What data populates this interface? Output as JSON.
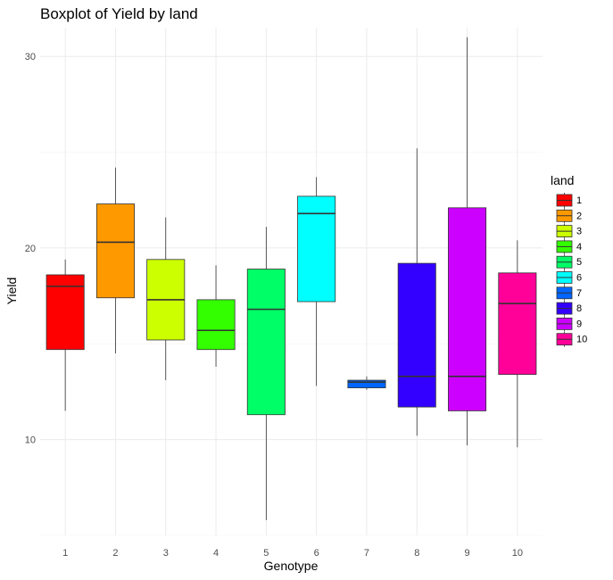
{
  "chart_data": {
    "type": "boxplot",
    "title": "Boxplot of Yield by land",
    "xlabel": "Genotype",
    "ylabel": "Yield",
    "ylim": [
      5,
      31.5
    ],
    "yticks": [
      10,
      20,
      30
    ],
    "grid": true,
    "legend": {
      "title": "land",
      "placement": "right"
    },
    "categories": [
      "1",
      "2",
      "3",
      "4",
      "5",
      "6",
      "7",
      "8",
      "9",
      "10"
    ],
    "boxes": [
      {
        "label": "1",
        "color": "#ff0000",
        "min": 11.5,
        "q1": 14.7,
        "median": 18.0,
        "q3": 18.6,
        "max": 19.4
      },
      {
        "label": "2",
        "color": "#ff9900",
        "min": 14.5,
        "q1": 17.4,
        "median": 20.3,
        "q3": 22.3,
        "max": 24.2
      },
      {
        "label": "3",
        "color": "#ccff00",
        "min": 13.1,
        "q1": 15.2,
        "median": 17.3,
        "q3": 19.4,
        "max": 21.6
      },
      {
        "label": "4",
        "color": "#33ff00",
        "min": 13.8,
        "q1": 14.7,
        "median": 15.7,
        "q3": 17.3,
        "max": 19.1
      },
      {
        "label": "5",
        "color": "#00ff66",
        "min": 5.8,
        "q1": 11.3,
        "median": 16.8,
        "q3": 18.9,
        "max": 21.1
      },
      {
        "label": "6",
        "color": "#00ffff",
        "min": 12.8,
        "q1": 17.2,
        "median": 21.8,
        "q3": 22.7,
        "max": 23.7
      },
      {
        "label": "7",
        "color": "#0066ff",
        "min": 12.6,
        "q1": 12.7,
        "median": 13.0,
        "q3": 13.1,
        "max": 13.3
      },
      {
        "label": "8",
        "color": "#3300ff",
        "min": 10.2,
        "q1": 11.7,
        "median": 13.3,
        "q3": 19.2,
        "max": 25.2
      },
      {
        "label": "9",
        "color": "#cc00ff",
        "min": 9.7,
        "q1": 11.5,
        "median": 13.3,
        "q3": 22.1,
        "max": 31.0
      },
      {
        "label": "10",
        "color": "#ff0099",
        "min": 9.6,
        "q1": 13.4,
        "median": 17.1,
        "q3": 18.7,
        "max": 20.4
      }
    ]
  }
}
